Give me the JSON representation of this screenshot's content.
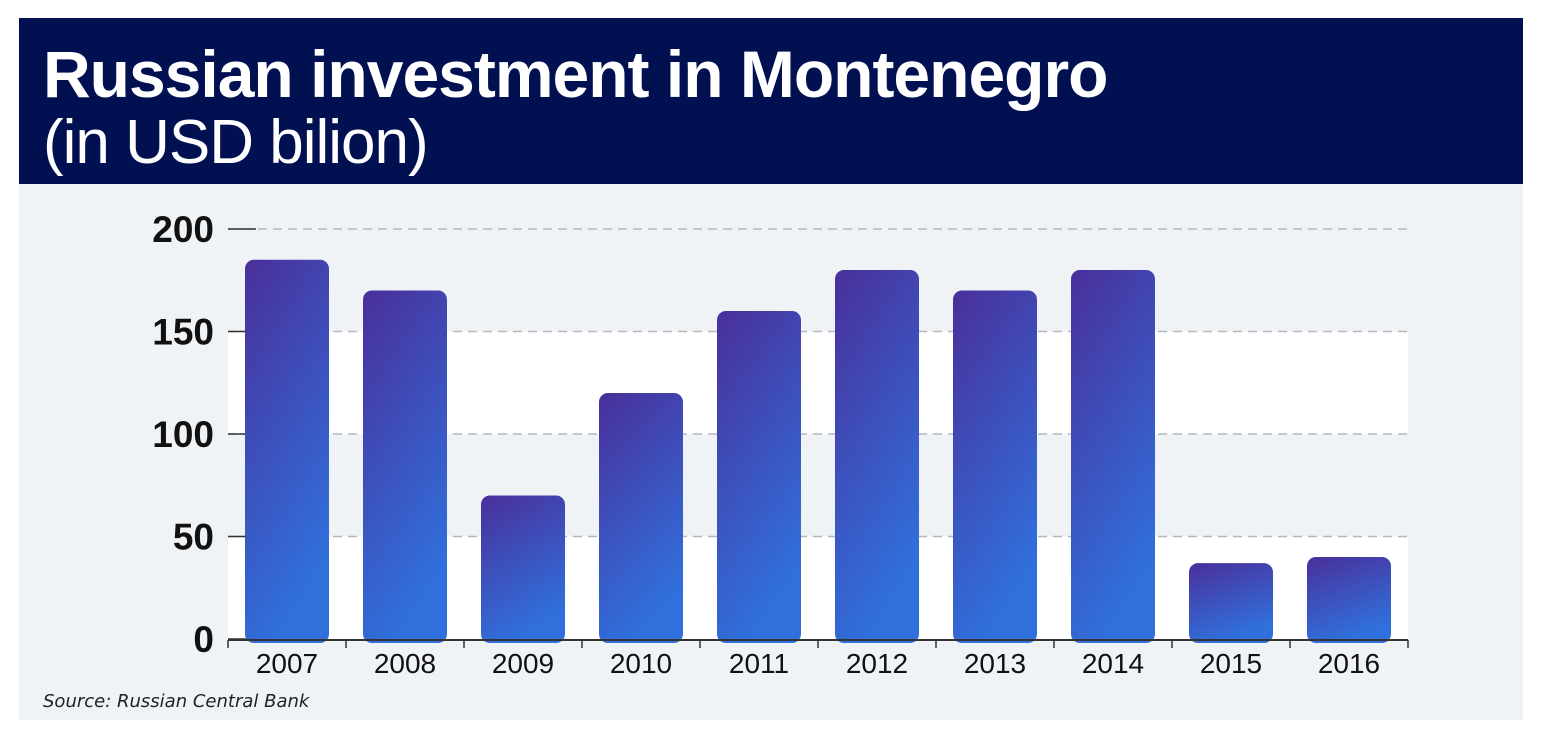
{
  "chart_data": {
    "type": "bar",
    "title": "Russian investment in Montenegro",
    "subtitle": "(in USD bilion)",
    "categories": [
      "2007",
      "2008",
      "2009",
      "2010",
      "2011",
      "2012",
      "2013",
      "2014",
      "2015",
      "2016"
    ],
    "values": [
      185,
      170,
      70,
      120,
      160,
      180,
      170,
      180,
      37,
      40
    ],
    "xlabel": "",
    "ylabel": "",
    "ylim": [
      0,
      200
    ],
    "yticks": [
      "0",
      "50",
      "100",
      "150",
      "200"
    ],
    "grid": true,
    "legend": "none",
    "source": "Source: Russian Central Bank"
  },
  "colors": {
    "header_bg": "#001050",
    "panel_bg": "#f0f3f6",
    "bar_top": "#4a2f9a",
    "bar_bottom": "#3070dc"
  }
}
